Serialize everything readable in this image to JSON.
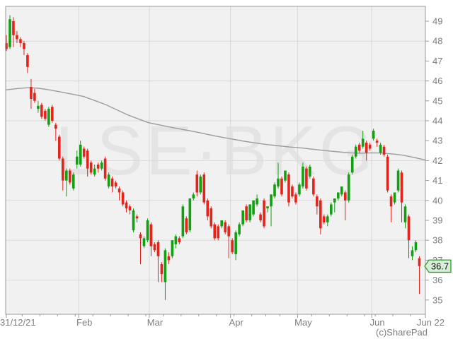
{
  "chart_data": {
    "type": "candlestick",
    "symbol_watermark": "LSE·BKG",
    "credit": "(c)SharePad",
    "last_price_label": "36.7",
    "last_price_value": 36.7,
    "y_axis": {
      "min": 35,
      "max": 49,
      "tick_step": 1,
      "tick_labels": [
        "49",
        "48",
        "47",
        "46",
        "45",
        "44",
        "43",
        "42",
        "41",
        "40",
        "39",
        "38",
        "37",
        "36",
        "35"
      ],
      "gridline_values": [
        48,
        46,
        44,
        42,
        40,
        38,
        36
      ],
      "side": "right",
      "grid": "on"
    },
    "x_axis": {
      "start_label": "31/12/21",
      "end_label": "Jun 22",
      "month_labels": [
        {
          "label": "Feb",
          "t": 21
        },
        {
          "label": "Mar",
          "t": 41
        },
        {
          "label": "Apr",
          "t": 64
        },
        {
          "label": "May",
          "t": 83
        },
        {
          "label": "Jun",
          "t": 104
        }
      ],
      "minor_ticks_t": [
        5,
        10,
        15,
        20,
        25,
        30,
        35,
        40,
        45,
        50,
        55,
        60,
        65,
        70,
        74,
        78,
        87,
        92,
        97,
        102,
        105,
        110,
        115
      ]
    },
    "series_ohlc": [
      [
        47.9,
        48.3,
        47.5,
        47.6
      ],
      [
        47.7,
        49.3,
        47.6,
        49.1
      ],
      [
        49.0,
        49.2,
        47.7,
        48.3
      ],
      [
        48.3,
        48.5,
        47.9,
        48.1
      ],
      [
        48.1,
        48.2,
        47.7,
        47.9
      ],
      [
        47.9,
        48.0,
        47.3,
        47.6
      ],
      [
        47.3,
        47.4,
        46.4,
        46.7
      ],
      [
        45.7,
        46.1,
        44.6,
        45.1
      ],
      [
        45.4,
        45.6,
        44.9,
        45.0
      ],
      [
        44.6,
        45.0,
        44.4,
        44.75
      ],
      [
        44.8,
        44.9,
        44.1,
        44.2
      ],
      [
        44.5,
        44.6,
        44.0,
        44.1
      ],
      [
        43.8,
        44.7,
        43.7,
        44.6
      ],
      [
        44.7,
        44.8,
        43.9,
        44.0
      ],
      [
        43.8,
        43.9,
        43.0,
        43.6
      ],
      [
        43.2,
        43.3,
        42.0,
        42.1
      ],
      [
        42.1,
        42.2,
        40.5,
        41.0
      ],
      [
        41.0,
        41.6,
        40.2,
        41.5
      ],
      [
        41.5,
        41.6,
        40.8,
        40.9
      ],
      [
        40.6,
        41.4,
        40.5,
        41.3
      ],
      [
        41.8,
        42.5,
        41.6,
        42.2
      ],
      [
        41.8,
        43.0,
        41.7,
        42.8
      ],
      [
        42.6,
        42.7,
        42.1,
        42.2
      ],
      [
        42.5,
        42.6,
        41.2,
        41.6
      ],
      [
        41.9,
        42.0,
        41.3,
        41.4
      ],
      [
        41.3,
        41.8,
        41.2,
        41.6
      ],
      [
        41.8,
        41.9,
        41.4,
        41.6
      ],
      [
        41.6,
        42.0,
        41.5,
        41.9
      ],
      [
        42.1,
        42.2,
        41.0,
        41.1
      ],
      [
        40.7,
        41.4,
        40.6,
        41.3
      ],
      [
        41.1,
        41.2,
        40.4,
        40.7
      ],
      [
        40.9,
        41.0,
        40.6,
        40.7
      ],
      [
        40.6,
        40.7,
        40.0,
        40.4
      ],
      [
        40.4,
        40.5,
        39.7,
        39.8
      ],
      [
        39.9,
        40.0,
        39.4,
        39.6
      ],
      [
        39.7,
        39.8,
        39.3,
        39.5
      ],
      [
        38.5,
        39.6,
        38.4,
        39.5
      ],
      [
        39.2,
        39.3,
        38.9,
        39.1
      ],
      [
        38.3,
        38.4,
        36.8,
        38.1
      ],
      [
        37.7,
        38.2,
        37.6,
        38.1
      ],
      [
        38.0,
        39.1,
        37.9,
        39.0
      ],
      [
        38.8,
        38.9,
        37.2,
        37.7
      ],
      [
        37.8,
        37.9,
        37.4,
        37.5
      ],
      [
        37.9,
        38.0,
        35.9,
        37.2
      ],
      [
        36.8,
        36.9,
        35.9,
        36.3
      ],
      [
        35.9,
        37.6,
        35.0,
        37.5
      ],
      [
        37.2,
        37.4,
        36.8,
        37.0
      ],
      [
        37.2,
        38.0,
        37.1,
        38.0
      ],
      [
        37.8,
        38.3,
        37.6,
        38.2
      ],
      [
        38.1,
        38.2,
        37.8,
        37.9
      ],
      [
        38.2,
        39.8,
        38.1,
        39.7
      ],
      [
        39.1,
        39.2,
        38.3,
        38.4
      ],
      [
        38.5,
        40.1,
        38.4,
        40.1
      ],
      [
        40.1,
        40.4,
        40.0,
        40.3
      ],
      [
        41.3,
        41.5,
        40.2,
        40.4
      ],
      [
        40.4,
        41.3,
        40.3,
        41.2
      ],
      [
        41.3,
        41.4,
        39.8,
        39.9
      ],
      [
        40.0,
        40.1,
        39.0,
        39.2
      ],
      [
        39.6,
        39.7,
        38.6,
        38.7
      ],
      [
        38.8,
        38.9,
        38.0,
        38.1
      ],
      [
        38.7,
        38.8,
        38.0,
        38.1
      ],
      [
        38.7,
        39.0,
        38.6,
        39.0
      ],
      [
        38.9,
        39.0,
        38.3,
        38.4
      ],
      [
        38.7,
        38.8,
        37.1,
        38.2
      ],
      [
        38.0,
        38.1,
        37.3,
        37.4
      ],
      [
        37.3,
        38.5,
        37.0,
        38.4
      ],
      [
        38.3,
        38.9,
        38.2,
        38.8
      ],
      [
        38.8,
        39.5,
        38.7,
        39.5
      ],
      [
        39.7,
        39.8,
        38.9,
        39.0
      ],
      [
        39.0,
        39.8,
        38.9,
        39.8
      ],
      [
        39.3,
        40.0,
        39.2,
        40.0
      ],
      [
        39.8,
        40.3,
        39.7,
        40.1
      ],
      [
        39.3,
        39.4,
        38.9,
        39.0
      ],
      [
        40.0,
        40.1,
        38.6,
        38.7
      ],
      [
        39.6,
        39.7,
        39.4,
        39.7
      ],
      [
        39.7,
        40.3,
        38.7,
        40.3
      ],
      [
        40.2,
        40.9,
        40.1,
        40.8
      ],
      [
        40.7,
        41.9,
        40.6,
        41.1
      ],
      [
        41.1,
        41.2,
        40.2,
        40.3
      ],
      [
        41.0,
        41.5,
        40.9,
        41.5
      ],
      [
        41.3,
        41.4,
        39.7,
        39.9
      ],
      [
        40.7,
        40.8,
        40.1,
        40.2
      ],
      [
        40.3,
        40.4,
        39.8,
        39.9
      ],
      [
        40.3,
        40.9,
        40.2,
        40.8
      ],
      [
        40.7,
        41.9,
        40.6,
        41.7
      ],
      [
        41.6,
        41.7,
        40.5,
        40.6
      ],
      [
        41.2,
        41.8,
        41.1,
        41.7
      ],
      [
        41.1,
        41.2,
        40.2,
        40.3
      ],
      [
        40.2,
        40.3,
        39.3,
        39.7
      ],
      [
        40.0,
        40.1,
        38.3,
        38.6
      ],
      [
        39.2,
        39.3,
        38.8,
        38.9
      ],
      [
        38.9,
        39.3,
        38.7,
        39.2
      ],
      [
        39.3,
        39.9,
        39.2,
        39.8
      ],
      [
        39.9,
        40.1,
        39.4,
        40.1
      ],
      [
        40.1,
        40.4,
        40.0,
        40.4
      ],
      [
        40.3,
        40.7,
        40.2,
        40.7
      ],
      [
        40.4,
        40.5,
        39.0,
        40.0
      ],
      [
        40.0,
        41.4,
        39.9,
        41.3
      ],
      [
        41.4,
        42.3,
        41.3,
        42.2
      ],
      [
        42.2,
        42.8,
        42.1,
        42.7
      ],
      [
        42.8,
        42.9,
        42.4,
        42.5
      ],
      [
        42.7,
        43.5,
        42.6,
        43.1
      ],
      [
        42.9,
        43.0,
        42.0,
        42.4
      ],
      [
        42.8,
        42.9,
        42.5,
        42.6
      ],
      [
        43.1,
        43.6,
        43.0,
        43.5
      ],
      [
        43.0,
        43.1,
        42.7,
        42.9
      ],
      [
        42.4,
        42.9,
        42.3,
        42.8
      ],
      [
        42.7,
        42.8,
        42.2,
        42.3
      ],
      [
        42.2,
        42.3,
        40.4,
        40.5
      ],
      [
        40.2,
        40.3,
        38.9,
        39.7
      ],
      [
        39.9,
        40.4,
        39.8,
        40.4
      ],
      [
        40.5,
        41.6,
        40.4,
        41.5
      ],
      [
        41.4,
        41.5,
        38.9,
        39.9
      ],
      [
        38.9,
        39.8,
        38.6,
        39.7
      ],
      [
        39.2,
        39.3,
        37.1,
        38.0
      ],
      [
        37.2,
        37.7,
        37.0,
        37.5
      ],
      [
        37.5,
        38.0,
        37.4,
        37.9
      ],
      [
        37.1,
        37.2,
        35.3,
        36.7
      ]
    ],
    "ma_line": [
      [
        8,
        45.55
      ],
      [
        25,
        45.62
      ],
      [
        40,
        45.66
      ],
      [
        55,
        45.63
      ],
      [
        70,
        45.55
      ],
      [
        85,
        45.45
      ],
      [
        100,
        45.35
      ],
      [
        118,
        45.22
      ],
      [
        135,
        45.0
      ],
      [
        150,
        44.8
      ],
      [
        165,
        44.55
      ],
      [
        180,
        44.3
      ],
      [
        195,
        44.1
      ],
      [
        210,
        43.9
      ],
      [
        227,
        43.78
      ],
      [
        245,
        43.65
      ],
      [
        262,
        43.54
      ],
      [
        280,
        43.42
      ],
      [
        295,
        43.3
      ],
      [
        312,
        43.18
      ],
      [
        328,
        43.08
      ],
      [
        345,
        42.97
      ],
      [
        362,
        42.88
      ],
      [
        378,
        42.8
      ],
      [
        394,
        42.74
      ],
      [
        410,
        42.68
      ],
      [
        427,
        42.63
      ],
      [
        444,
        42.56
      ],
      [
        460,
        42.5
      ],
      [
        478,
        42.44
      ],
      [
        495,
        42.39
      ],
      [
        510,
        42.37
      ],
      [
        525,
        42.39
      ],
      [
        540,
        42.38
      ],
      [
        555,
        42.33
      ],
      [
        570,
        42.27
      ],
      [
        585,
        42.16
      ],
      [
        601,
        42.03
      ]
    ],
    "legend_position": "none",
    "colors": {
      "up": "#12a012",
      "down": "#e3241b",
      "ma": "#9c9c9c",
      "grid": "#d9d9d9",
      "axis": "#999999",
      "label": "#7e7e7e",
      "plot_bg": "#f1f1f1",
      "watermark": "#e4e4e4",
      "tag_bg": "#d7eed7",
      "tag_border": "#339933",
      "tag_text": "#111111"
    }
  }
}
